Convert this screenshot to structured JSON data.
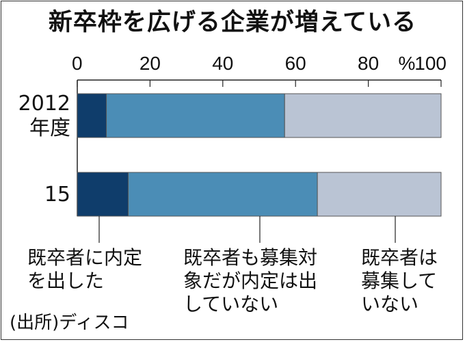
{
  "chart_data": {
    "type": "bar",
    "orientation": "horizontal",
    "stacked": true,
    "title": "新卒枠を広げる企業が増えている",
    "categories": [
      "2012\n年度",
      "15"
    ],
    "series": [
      {
        "name": "既卒者に内定を出した",
        "values": [
          8,
          14
        ],
        "color": "#0f3d6b"
      },
      {
        "name": "既卒者も募集対象だが内定は出していない",
        "values": [
          49,
          52
        ],
        "color": "#4b8db6"
      },
      {
        "name": "既卒者は募集していない",
        "values": [
          43,
          34
        ],
        "color": "#bac4d4"
      }
    ],
    "xlim": [
      0,
      100
    ],
    "xticks": [
      0,
      20,
      40,
      60,
      80,
      100
    ],
    "xlabel": "%",
    "legend": [
      {
        "lines": [
          "既卒者に内定",
          "を出した"
        ]
      },
      {
        "lines": [
          "既卒者も募集対",
          "象だが内定は出",
          "していない"
        ]
      },
      {
        "lines": [
          "既卒者は",
          "募集して",
          "いない"
        ]
      }
    ],
    "source": "(出所)ディスコ"
  }
}
